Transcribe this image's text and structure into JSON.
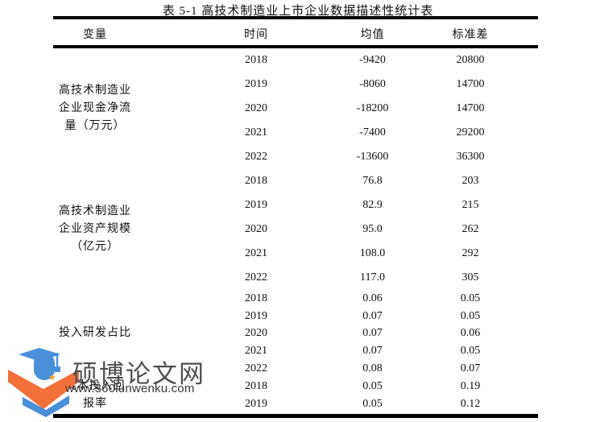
{
  "title": "表 5-1 高技术制造业上市企业数据描述性统计表",
  "table": {
    "columns": [
      "变量",
      "时间",
      "均值",
      "标准差"
    ],
    "groups": [
      {
        "variable": "高技术制造业企业现金净流量（万元）",
        "variable_lines": [
          "高技术制造业",
          "企业现金净流",
          "量（万元）"
        ],
        "rows": [
          [
            "2018",
            "-9420",
            "20800"
          ],
          [
            "2019",
            "-8060",
            "14700"
          ],
          [
            "2020",
            "-18200",
            "14700"
          ],
          [
            "2021",
            "-7400",
            "29200"
          ],
          [
            "2022",
            "-13600",
            "36300"
          ]
        ]
      },
      {
        "variable": "高技术制造业企业资产规模（亿元）",
        "variable_lines": [
          "高技术制造业",
          "企业资产规模",
          "（亿元）"
        ],
        "rows": [
          [
            "2018",
            "76.8",
            "203"
          ],
          [
            "2019",
            "82.9",
            "215"
          ],
          [
            "2020",
            "95.0",
            "262"
          ],
          [
            "2021",
            "108.0",
            "292"
          ],
          [
            "2022",
            "117.0",
            "305"
          ]
        ]
      },
      {
        "variable": "投入研发占比",
        "variable_lines": [
          "投入研发占比"
        ],
        "rows": [
          [
            "2018",
            "0.06",
            "0.05"
          ],
          [
            "2019",
            "0.07",
            "0.05"
          ],
          [
            "2020",
            "0.07",
            "0.06"
          ],
          [
            "2021",
            "0.07",
            "0.05"
          ],
          [
            "2022",
            "0.08",
            "0.07"
          ]
        ]
      },
      {
        "variable": "资本投入回报率",
        "variable_lines": [
          "资本投入回",
          "报率"
        ],
        "rows": [
          [
            "2018",
            "0.05",
            "0.19"
          ],
          [
            "2019",
            "0.05",
            "0.12"
          ]
        ]
      }
    ]
  },
  "watermark": {
    "site_name": "硕博论文网",
    "site_url": "www.360lunwenku.com"
  },
  "icons": {
    "star": "★"
  },
  "colors": {
    "logo_blue": "#4a90d9",
    "logo_orange": "#f4703a",
    "star_gold": "#f5a623",
    "rule_black": "#000000",
    "watermark_text": "#4f4f4f"
  }
}
